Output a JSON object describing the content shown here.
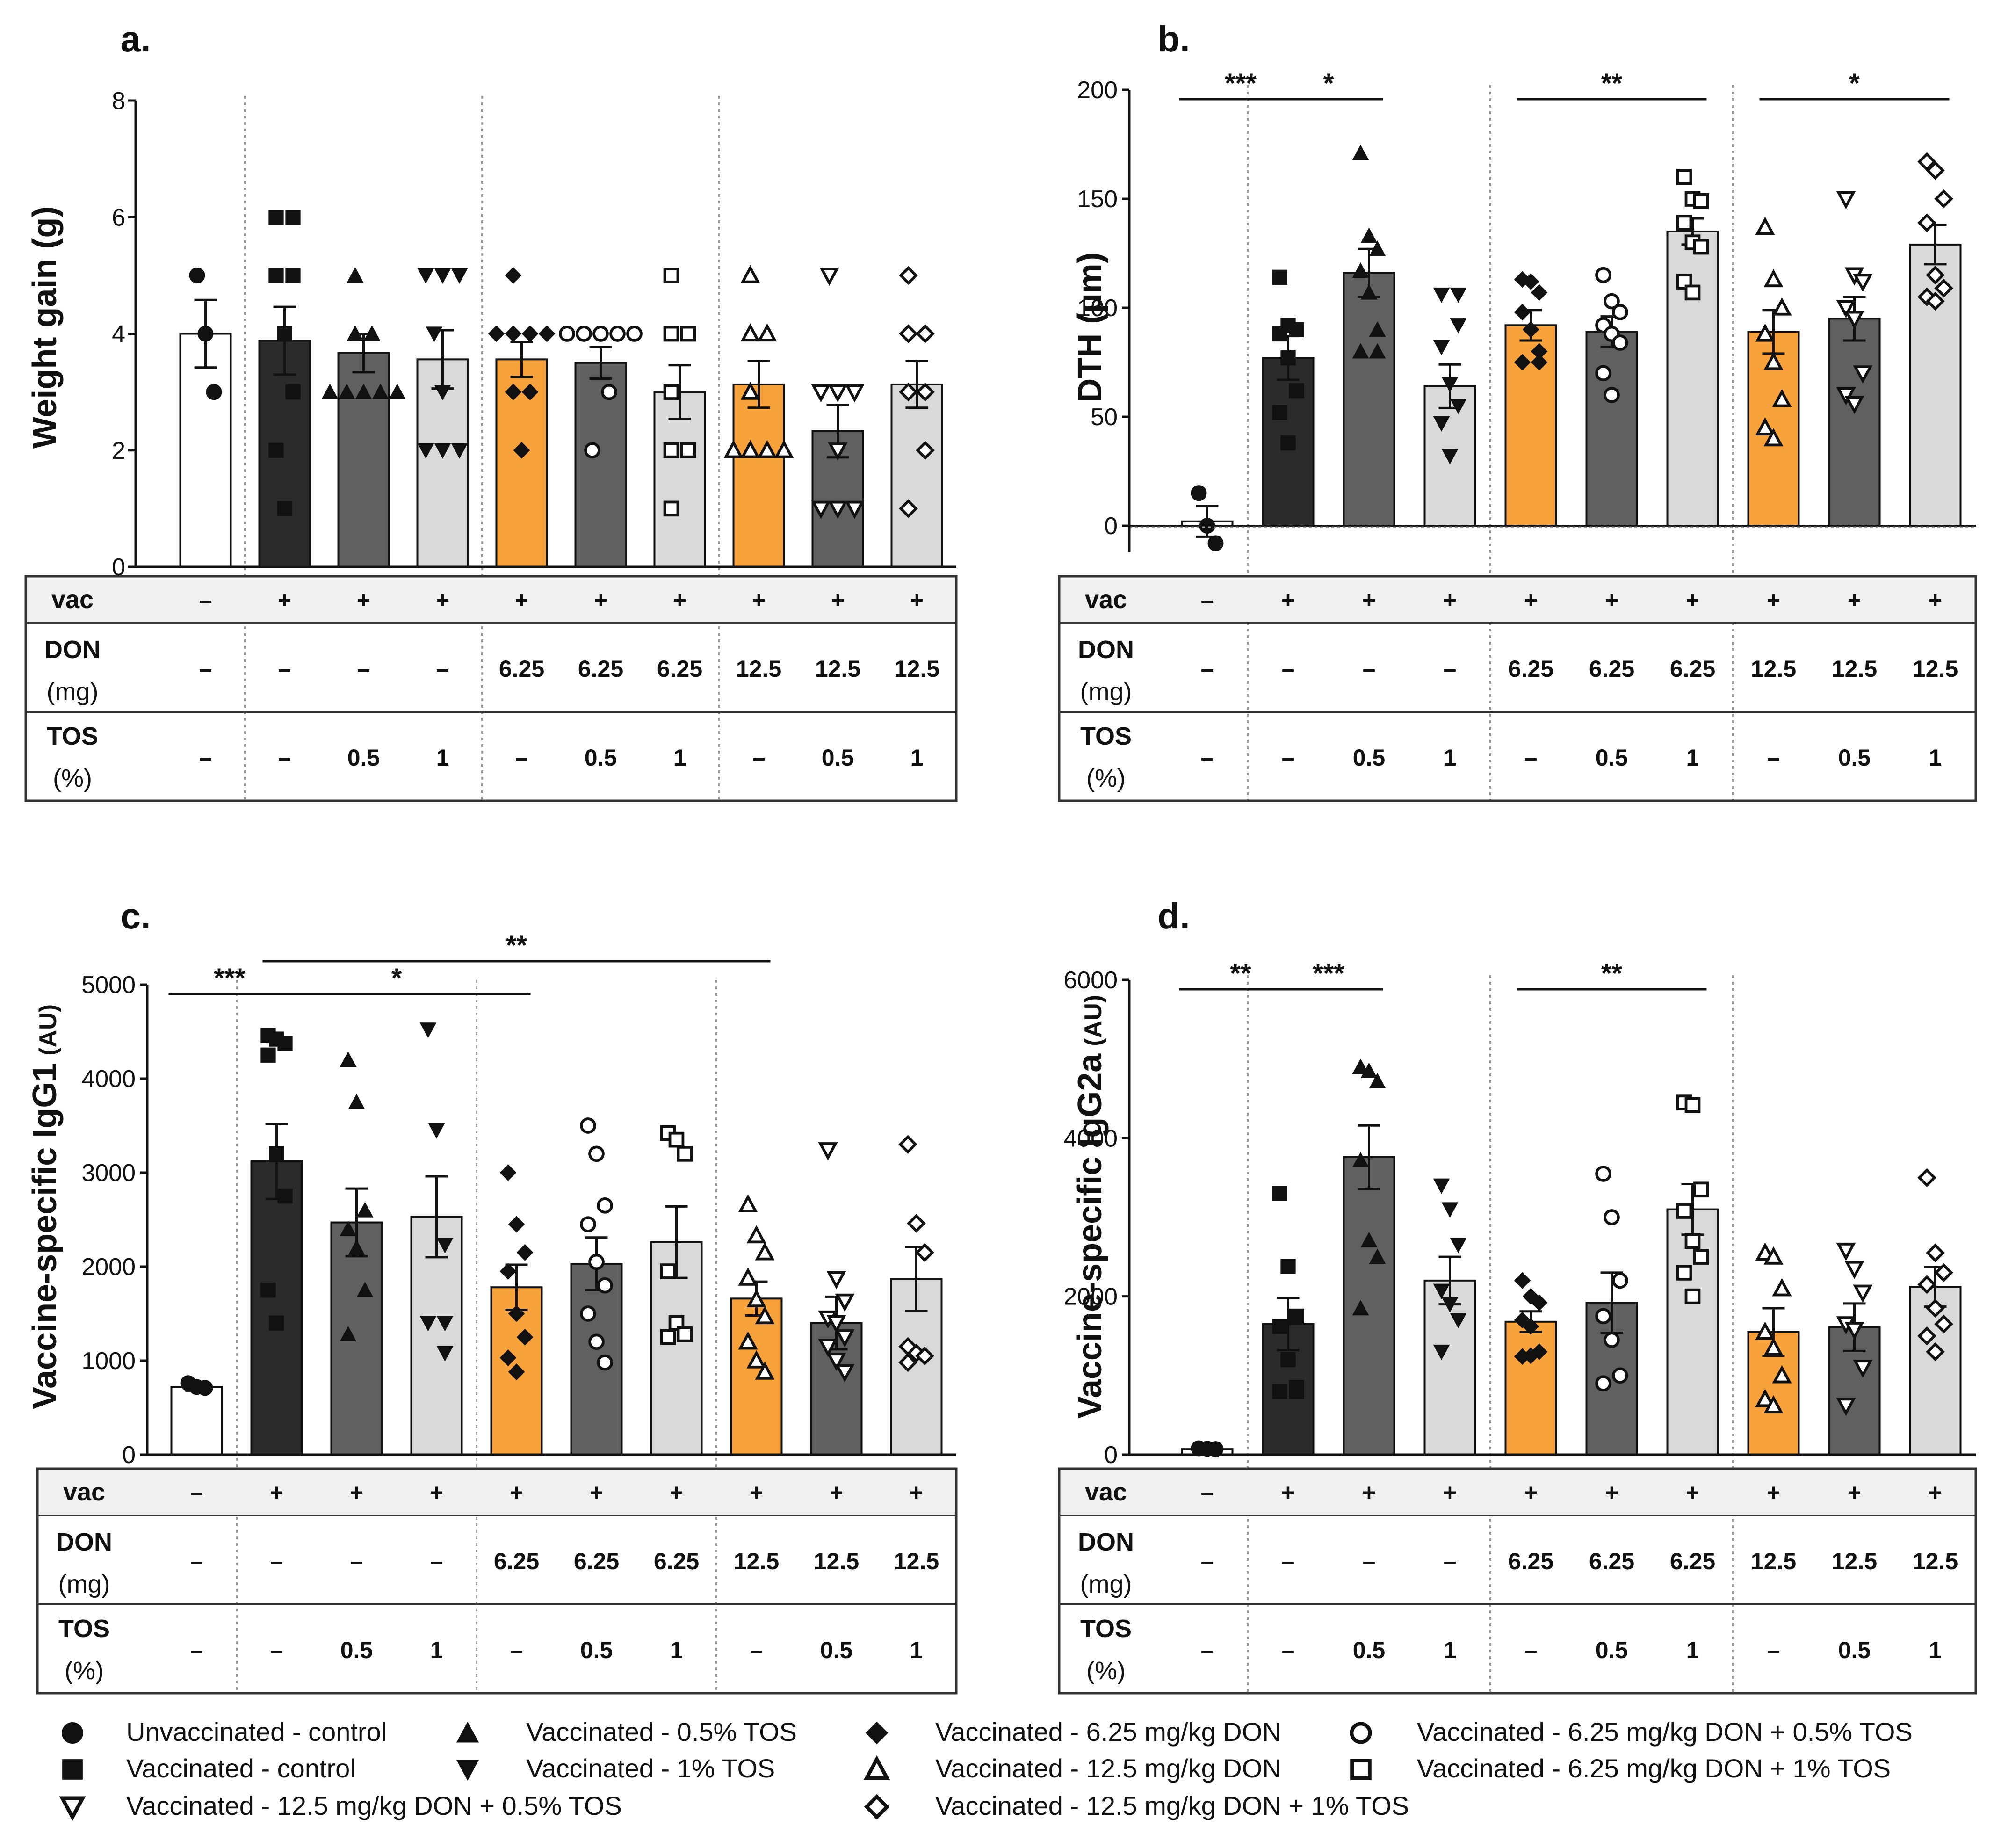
{
  "colors": {
    "white": "#ffffff",
    "black": "#2b2b2b",
    "dark": "#606060",
    "light": "#d9d9d9",
    "orange": "#f7a23b",
    "header_fill": "#f0f0f0"
  },
  "groups": [
    {
      "vac": "–",
      "don": "–",
      "tos": "–",
      "fill": "white",
      "marker": "circle",
      "solid": true
    },
    {
      "vac": "+",
      "don": "–",
      "tos": "–",
      "fill": "black",
      "marker": "square",
      "solid": true
    },
    {
      "vac": "+",
      "don": "–",
      "tos": "0.5",
      "fill": "dark",
      "marker": "triangle-up",
      "solid": true
    },
    {
      "vac": "+",
      "don": "–",
      "tos": "1",
      "fill": "light",
      "marker": "triangle-down",
      "solid": true
    },
    {
      "vac": "+",
      "don": "6.25",
      "tos": "–",
      "fill": "orange",
      "marker": "diamond",
      "solid": true
    },
    {
      "vac": "+",
      "don": "6.25",
      "tos": "0.5",
      "fill": "dark",
      "marker": "circle",
      "solid": false
    },
    {
      "vac": "+",
      "don": "6.25",
      "tos": "1",
      "fill": "light",
      "marker": "square",
      "solid": false
    },
    {
      "vac": "+",
      "don": "12.5",
      "tos": "–",
      "fill": "orange",
      "marker": "triangle-up",
      "solid": false
    },
    {
      "vac": "+",
      "don": "12.5",
      "tos": "0.5",
      "fill": "dark",
      "marker": "triangle-down",
      "solid": false
    },
    {
      "vac": "+",
      "don": "12.5",
      "tos": "1",
      "fill": "light",
      "marker": "diamond",
      "solid": false
    }
  ],
  "table_labels": {
    "vac": "vac",
    "don_line1": "DON",
    "don_line2": "(mg)",
    "tos_line1": "TOS",
    "tos_line2": "(%)"
  },
  "chart_data": [
    {
      "panel": "a.",
      "type": "bar",
      "ylabel_main": "Weight gain (g)",
      "ylabel_unit": "",
      "ylim": [
        0,
        8
      ],
      "yticks": [
        0,
        2,
        4,
        6,
        8
      ],
      "zero_line": false,
      "values": [
        4.0,
        3.88,
        3.67,
        3.56,
        3.56,
        3.5,
        3.0,
        3.13,
        2.33,
        3.13
      ],
      "errors": [
        0.58,
        0.58,
        0.33,
        0.5,
        0.3,
        0.27,
        0.46,
        0.4,
        0.45,
        0.4
      ],
      "points": [
        [
          5,
          4,
          3
        ],
        [
          6,
          6,
          5,
          5,
          4,
          3,
          2,
          1
        ],
        [
          5,
          4,
          4,
          3,
          3,
          3,
          3,
          3
        ],
        [
          5,
          5,
          5,
          4,
          3,
          2,
          2,
          2
        ],
        [
          5,
          4,
          4,
          4,
          4,
          3,
          3,
          2
        ],
        [
          4,
          4,
          4,
          4,
          4,
          3,
          2
        ],
        [
          5,
          4,
          4,
          3,
          2,
          2,
          1
        ],
        [
          5,
          4,
          4,
          3,
          2,
          2,
          2,
          2
        ],
        [
          5,
          3,
          3,
          3,
          2,
          1,
          1,
          1
        ],
        [
          5,
          4,
          4,
          3,
          3,
          2,
          1
        ]
      ],
      "significance": []
    },
    {
      "panel": "b.",
      "type": "bar",
      "ylabel_main": "DTH (µm)",
      "ylabel_unit": "",
      "ylim": [
        -12,
        200
      ],
      "yticks": [
        0,
        50,
        100,
        150,
        200
      ],
      "zero_line": true,
      "values": [
        2,
        77,
        116,
        64,
        92,
        89,
        135,
        89,
        95,
        129
      ],
      "errors": [
        7,
        10,
        11,
        10,
        7,
        7,
        6,
        10,
        10,
        9
      ],
      "points": [
        [
          15,
          0,
          -8
        ],
        [
          114,
          92,
          90,
          88,
          77,
          62,
          52,
          38
        ],
        [
          171,
          133,
          127,
          117,
          107,
          90,
          80,
          80
        ],
        [
          106,
          106,
          92,
          82,
          65,
          55,
          47,
          32
        ],
        [
          113,
          112,
          107,
          98,
          90,
          80,
          75,
          75
        ],
        [
          115,
          103,
          98,
          92,
          88,
          84,
          70,
          60
        ],
        [
          160,
          150,
          149,
          139,
          130,
          128,
          112,
          107
        ],
        [
          137,
          113,
          100,
          88,
          75,
          58,
          45,
          40
        ],
        [
          150,
          115,
          112,
          100,
          95,
          70,
          60,
          56
        ],
        [
          167,
          163,
          150,
          139,
          115,
          109,
          105,
          103
        ]
      ],
      "significance": [
        {
          "from": 0,
          "to": 1,
          "label": "***"
        },
        {
          "from": 1,
          "to": 2,
          "label": "*"
        },
        {
          "from": 4,
          "to": 6,
          "label": "**"
        },
        {
          "from": 7,
          "to": 9,
          "label": "*"
        }
      ]
    },
    {
      "panel": "c.",
      "type": "bar",
      "ylabel_main": "Vaccine-specific IgG1",
      "ylabel_unit": "(AU)",
      "ylim": [
        0,
        5000
      ],
      "yticks": [
        0,
        1000,
        2000,
        3000,
        4000,
        5000
      ],
      "zero_line": false,
      "values": [
        720,
        3120,
        2470,
        2530,
        1780,
        2030,
        2260,
        1660,
        1400,
        1870
      ],
      "errors": [
        40,
        400,
        360,
        430,
        240,
        280,
        380,
        180,
        280,
        340
      ],
      "points": [
        [
          760,
          720,
          710
        ],
        [
          4460,
          4420,
          4370,
          4250,
          3200,
          2750,
          1750,
          1400
        ],
        [
          4200,
          3750,
          2600,
          2400,
          2200,
          1750,
          1280
        ],
        [
          4520,
          3450,
          2230,
          1400,
          1400,
          1080
        ],
        [
          3000,
          2450,
          2150,
          1950,
          1500,
          1250,
          1030,
          880
        ],
        [
          3500,
          3200,
          2650,
          2450,
          2050,
          1800,
          1500,
          1200,
          980
        ],
        [
          3420,
          3350,
          3200,
          1950,
          1400,
          1280,
          1250
        ],
        [
          2660,
          2330,
          2150,
          1880,
          1650,
          1470,
          1200,
          1000,
          880
        ],
        [
          3240,
          1870,
          1630,
          1450,
          1400,
          1250,
          1150,
          1000,
          880
        ],
        [
          3300,
          2460,
          2150,
          1150,
          1080,
          1050,
          980
        ]
      ],
      "significance": [
        {
          "from": 0,
          "to": 1,
          "label": "***"
        },
        {
          "from": 1,
          "to": 4,
          "label": "*"
        },
        {
          "from": 1,
          "to": 7,
          "label": "**",
          "tier": 1
        }
      ]
    },
    {
      "panel": "d.",
      "type": "bar",
      "ylabel_main": "Vaccine-specific IgG2a",
      "ylabel_unit": "(AU)",
      "ylim": [
        0,
        6000
      ],
      "yticks": [
        0,
        2000,
        4000,
        6000
      ],
      "zero_line": false,
      "values": [
        70,
        1650,
        3760,
        2200,
        1680,
        1920,
        3100,
        1550,
        1610,
        2120
      ],
      "errors": [
        15,
        330,
        400,
        300,
        130,
        380,
        320,
        300,
        300,
        250
      ],
      "points": [
        [
          80,
          75,
          70
        ],
        [
          3300,
          2380,
          1750,
          1620,
          1200,
          850,
          800,
          800
        ],
        [
          4900,
          4850,
          4720,
          3720,
          2710,
          2500,
          1850
        ],
        [
          3400,
          3100,
          2650,
          2070,
          1900,
          1700,
          1300
        ],
        [
          2200,
          2000,
          1920,
          1700,
          1620,
          1300,
          1240,
          1250
        ],
        [
          3550,
          3000,
          2200,
          1750,
          1450,
          1000,
          900
        ],
        [
          4450,
          4420,
          3350,
          3080,
          2700,
          2500,
          2300,
          2000
        ],
        [
          2550,
          2500,
          2100,
          1550,
          1350,
          1000,
          700,
          620
        ],
        [
          2580,
          2350,
          2050,
          1650,
          1580,
          1100,
          620
        ],
        [
          3500,
          2550,
          2300,
          2150,
          1850,
          1650,
          1500,
          1300
        ]
      ],
      "significance": [
        {
          "from": 0,
          "to": 1,
          "label": "**"
        },
        {
          "from": 1,
          "to": 2,
          "label": "***"
        },
        {
          "from": 4,
          "to": 6,
          "label": "**"
        }
      ]
    }
  ],
  "legend": [
    {
      "label": "Unvaccinated - control",
      "marker": "circle",
      "solid": true
    },
    {
      "label": "Vaccinated - 0.5% TOS",
      "marker": "triangle-up",
      "solid": true
    },
    {
      "label": "Vaccinated - 6.25 mg/kg DON",
      "marker": "diamond",
      "solid": true
    },
    {
      "label": "Vaccinated - 6.25 mg/kg DON + 0.5% TOS",
      "marker": "circle",
      "solid": false
    },
    {
      "label": "Vaccinated - control",
      "marker": "square",
      "solid": true
    },
    {
      "label": "Vaccinated - 1%    TOS",
      "marker": "triangle-down",
      "solid": true
    },
    {
      "label": "Vaccinated - 12.5 mg/kg DON",
      "marker": "triangle-up",
      "solid": false
    },
    {
      "label": "Vaccinated - 6.25 mg/kg DON + 1%    TOS",
      "marker": "square",
      "solid": false
    },
    {
      "label": "Vaccinated - 12.5 mg/kg DON + 0.5% TOS",
      "marker": "triangle-down",
      "solid": false
    },
    {
      "label": "Vaccinated - 12.5 mg/kg DON + 1%  TOS",
      "marker": "diamond",
      "solid": false
    }
  ]
}
